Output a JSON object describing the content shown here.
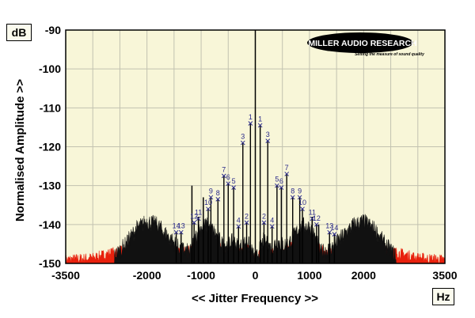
{
  "chart_data": {
    "type": "line",
    "title": "",
    "xlabel": "<< Jitter Frequency >>",
    "ylabel": "Normalised Amplitude >>",
    "x_unit": "Hz",
    "y_unit": "dB",
    "xlim": [
      -3500,
      3500
    ],
    "ylim": [
      -150,
      -90
    ],
    "x_ticks": [
      -3500,
      -2000,
      -1000,
      0,
      1000,
      2000,
      3500
    ],
    "y_ticks": [
      -90,
      -100,
      -110,
      -120,
      -130,
      -140,
      -150
    ],
    "grid": true,
    "logo": "MILLER AUDIO RESEARCH",
    "logo_tagline": "Setting the measure of sound quality",
    "colors": {
      "background": "#f8f6d8",
      "grid": "#c2c2b0",
      "noise_red": "#e8200c",
      "noise_black": "#111111",
      "marker": "#2a2a8a"
    },
    "series": [
      {
        "style": "noise-floor",
        "color": "#e8200c",
        "x": [
          -3500,
          -3000,
          -2600,
          -2300,
          -2000,
          -1700,
          -1400,
          -1200,
          -1050,
          -900,
          -700,
          -500,
          -300,
          -150,
          0,
          150,
          300,
          500,
          700,
          900,
          1050,
          1200,
          1400,
          1700,
          2000,
          2300,
          2600,
          3000,
          3500
        ],
        "values": [
          -149,
          -148.5,
          -147,
          -146.5,
          -145,
          -146,
          -147,
          -146.5,
          -144,
          -142.5,
          -145,
          -147,
          -147.5,
          -146,
          -149,
          -146,
          -147.5,
          -147,
          -145,
          -142.5,
          -144,
          -146.5,
          -147,
          -146,
          -145,
          -146.5,
          -147,
          -148.5,
          -149
        ]
      },
      {
        "style": "noise-floor",
        "color": "#111111",
        "x": [
          -2600,
          -2400,
          -2200,
          -2000,
          -1800,
          -1600,
          -1400,
          -1200,
          -1100,
          -1000,
          -900,
          -800,
          -700,
          -600,
          -500,
          -400,
          -300,
          -150,
          0,
          150,
          300,
          400,
          500,
          600,
          700,
          800,
          900,
          1000,
          1100,
          1200,
          1400,
          1600,
          1800,
          2000,
          2200,
          2400,
          2600
        ],
        "values": [
          -148,
          -145,
          -141,
          -139,
          -140,
          -143,
          -146,
          -147,
          -143,
          -140.5,
          -140,
          -141,
          -143,
          -145,
          -145,
          -144,
          -146,
          -144,
          -149,
          -144,
          -146,
          -144,
          -145,
          -145,
          -143,
          -141,
          -140,
          -140.5,
          -143,
          -147,
          -146,
          -143,
          -140,
          -139,
          -141,
          -145,
          -148
        ]
      }
    ],
    "markers": [
      {
        "label": "1",
        "x": -90,
        "y": -114
      },
      {
        "label": "1",
        "x": 90,
        "y": -114.5
      },
      {
        "label": "3",
        "x": -230,
        "y": -119
      },
      {
        "label": "3",
        "x": 230,
        "y": -118.5
      },
      {
        "label": "7",
        "x": -580,
        "y": -127.5
      },
      {
        "label": "7",
        "x": 580,
        "y": -127
      },
      {
        "label": "6",
        "x": -500,
        "y": -129.5
      },
      {
        "label": "5",
        "x": -400,
        "y": -130.5
      },
      {
        "label": "5",
        "x": 400,
        "y": -130
      },
      {
        "label": "6",
        "x": 480,
        "y": -130.5
      },
      {
        "label": "9",
        "x": -820,
        "y": -133
      },
      {
        "label": "8",
        "x": -690,
        "y": -133.5
      },
      {
        "label": "8",
        "x": 690,
        "y": -133
      },
      {
        "label": "9",
        "x": 820,
        "y": -133
      },
      {
        "label": "10",
        "x": -870,
        "y": -136
      },
      {
        "label": "10",
        "x": 870,
        "y": -136
      },
      {
        "label": "11",
        "x": -1050,
        "y": -138.5
      },
      {
        "label": "12",
        "x": -1130,
        "y": -139.5
      },
      {
        "label": "11",
        "x": 1050,
        "y": -138.5
      },
      {
        "label": "12",
        "x": 1130,
        "y": -140
      },
      {
        "label": "2",
        "x": -160,
        "y": -139.5
      },
      {
        "label": "2",
        "x": 160,
        "y": -139.5
      },
      {
        "label": "4",
        "x": -310,
        "y": -140.5
      },
      {
        "label": "4",
        "x": 310,
        "y": -140.5
      },
      {
        "label": "14",
        "x": -1460,
        "y": -142
      },
      {
        "label": "13",
        "x": -1370,
        "y": -142
      },
      {
        "label": "13",
        "x": 1370,
        "y": -142
      },
      {
        "label": "14",
        "x": 1460,
        "y": -142.5
      }
    ],
    "spikes": [
      {
        "x": 0,
        "y": -90
      },
      {
        "x": -1170,
        "y": -130
      },
      {
        "x": -1050,
        "y": -138
      },
      {
        "x": -960,
        "y": -133
      },
      {
        "x": 1050,
        "y": -138
      },
      {
        "x": 1170,
        "y": -140
      }
    ]
  }
}
